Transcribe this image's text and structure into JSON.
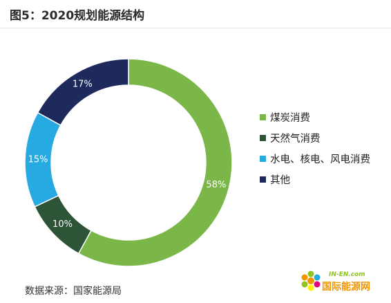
{
  "title": "图5：2020规划能源结构",
  "source": "数据来源：国家能源局",
  "watermark": {
    "line1": "IN-EN.com",
    "line2": "国际能源网"
  },
  "chart_data": {
    "type": "pie",
    "variant": "donut",
    "legend_position": "right",
    "series": [
      {
        "name": "煤炭消费",
        "value": 58,
        "label": "58%",
        "color": "#7ab648"
      },
      {
        "name": "天然气消费",
        "value": 10,
        "label": "10%",
        "color": "#2e5438"
      },
      {
        "name": "水电、核电、风电消费",
        "value": 15,
        "label": "15%",
        "color": "#27a9e1"
      },
      {
        "name": "其他",
        "value": 17,
        "label": "17%",
        "color": "#1f2a5c"
      }
    ]
  }
}
